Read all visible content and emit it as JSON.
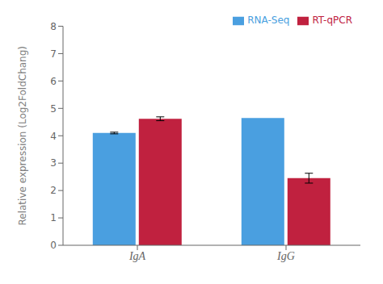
{
  "chart_data": {
    "type": "bar",
    "categories": [
      "IgA",
      "IgG"
    ],
    "series": [
      {
        "name": "RNA-Seq",
        "color": "#4A9FE0",
        "values": [
          4.1,
          4.65
        ],
        "errors": [
          0.03,
          null
        ]
      },
      {
        "name": "RT-qPCR",
        "color": "#C0213F",
        "values": [
          4.62,
          2.45
        ],
        "errors": [
          0.07,
          0.18
        ]
      }
    ],
    "ylabel": "Relative expression  (Log2FoldChang)",
    "ylim": [
      0,
      8
    ],
    "yticks": [
      0,
      1,
      2,
      3,
      4,
      5,
      6,
      7,
      8
    ],
    "legend": "top-right",
    "grid": false
  }
}
